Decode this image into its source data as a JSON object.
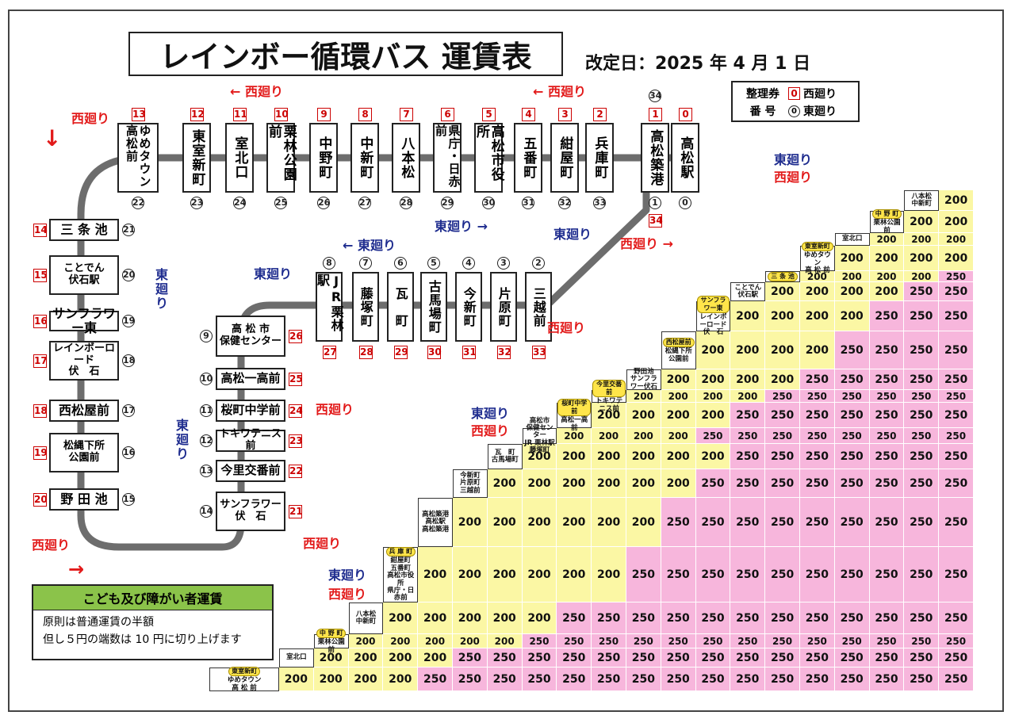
{
  "title": "レインボー循環バス 運賃表",
  "revised": "改定日：2025 年 4 月 1 日",
  "legend": {
    "label_line1": "整理券",
    "label_line2": "番 号",
    "sq_mark": "0",
    "sq_text": "西廻り",
    "ci_mark": "0",
    "ci_text": "東廻り"
  },
  "directions": {
    "west": "西廻り",
    "east": "東廻り",
    "east_v": "東\n廻\nり"
  },
  "top_stops": [
    {
      "name": "ゆめタウン高松前",
      "sq": "13",
      "ci": "22"
    },
    {
      "name": "東室新町",
      "sq": "12",
      "ci": "23"
    },
    {
      "name": "室北口",
      "sq": "11",
      "ci": "24"
    },
    {
      "name": "栗林公園前",
      "sq": "10",
      "ci": "25"
    },
    {
      "name": "中野町",
      "sq": "9",
      "ci": "26"
    },
    {
      "name": "中新町",
      "sq": "8",
      "ci": "27"
    },
    {
      "name": "八本松",
      "sq": "7",
      "ci": "28"
    },
    {
      "name": "県庁・日赤前",
      "sq": "6",
      "ci": "29"
    },
    {
      "name": "高松市役所",
      "sq": "5",
      "ci": "30"
    },
    {
      "name": "五番町",
      "sq": "4",
      "ci": "31"
    },
    {
      "name": "紺屋町",
      "sq": "3",
      "ci": "32"
    },
    {
      "name": "兵庫町",
      "sq": "2",
      "ci": "33"
    },
    {
      "name": "高松築港",
      "sq": "1",
      "ci": "1",
      "ci_top": "34",
      "sq_bottom": "34"
    },
    {
      "name": "高松駅",
      "sq": "0",
      "ci": "0"
    }
  ],
  "mid_stops": [
    {
      "name": "JR栗林駅",
      "ci": "8",
      "sq": "27"
    },
    {
      "name": "藤塚町",
      "ci": "7",
      "sq": "28"
    },
    {
      "name": "瓦　町",
      "ci": "6",
      "sq": "29"
    },
    {
      "name": "古馬場町",
      "ci": "5",
      "sq": "30"
    },
    {
      "name": "今新町",
      "ci": "4",
      "sq": "31"
    },
    {
      "name": "片原町",
      "ci": "3",
      "sq": "32"
    },
    {
      "name": "三越前",
      "ci": "2",
      "sq": "33"
    }
  ],
  "left_stops": [
    {
      "name": "三 条 池",
      "sq": "14",
      "ci": "21"
    },
    {
      "name": "ことでん\n伏石駅",
      "sq": "15",
      "ci": "20"
    },
    {
      "name": "サンフラワー東",
      "sq": "16",
      "ci": "19"
    },
    {
      "name": "レインボーロード\n伏　石",
      "sq": "17",
      "ci": "18"
    },
    {
      "name": "西松屋前",
      "sq": "18",
      "ci": "17"
    },
    {
      "name": "松縄下所\n公園前",
      "sq": "19",
      "ci": "16"
    },
    {
      "name": "野 田 池",
      "sq": "20",
      "ci": "15"
    }
  ],
  "inner_stops": [
    {
      "name": "高 松 市\n保健センター",
      "ci": "9",
      "sq": "26"
    },
    {
      "name": "高松一高前",
      "ci": "10",
      "sq": "25"
    },
    {
      "name": "桜町中学前",
      "ci": "11",
      "sq": "24"
    },
    {
      "name": "トキワテニス前",
      "ci": "12",
      "sq": "23"
    },
    {
      "name": "今里交番前",
      "ci": "13",
      "sq": "22"
    },
    {
      "name": "サンフラワー\n伏　石",
      "ci": "14",
      "sq": "21"
    }
  ],
  "fare_headers": [
    {
      "tag": "東室新町",
      "name": "ゆめタウン\n高 松 前"
    },
    {
      "tag": "",
      "name": "室北口"
    },
    {
      "tag": "中 野 町",
      "name": "栗林公園前"
    },
    {
      "tag": "",
      "name": "八本松\n中新町"
    },
    {
      "tag": "兵 庫 町",
      "name": "紺屋町\n五番町\n高松市役所\n県庁・日赤前"
    },
    {
      "tag": "",
      "name": "高松築港\n高松駅\n高松築港"
    },
    {
      "tag": "",
      "name": "今新町\n片原町\n三越前"
    },
    {
      "tag": "",
      "name": "瓦　町\n古馬場町"
    },
    {
      "tag": "",
      "name": "高松市\n保健センター\nJR 栗林駅\n藤塚町"
    },
    {
      "tag": "桜町中学前",
      "name": "高松一高前"
    },
    {
      "tag": "今里交番前",
      "name": "トキワテニス前"
    },
    {
      "tag": "",
      "name": "野田池\nサンフラワー伏石"
    },
    {
      "tag": "西松屋前",
      "name": "松縄下所公園前"
    },
    {
      "tag": "サンフラワー東",
      "name": "レインボーロード\n伏　石"
    },
    {
      "tag": "",
      "name": "ことでん伏石駅"
    },
    {
      "tag": "三 条 池",
      "name": ""
    },
    {
      "tag": "東室新町",
      "name": "ゆめタウン\n高 松 前"
    },
    {
      "tag": "",
      "name": "室北口"
    },
    {
      "tag": "中 野 町",
      "name": "栗林公園前"
    },
    {
      "tag": "",
      "name": "八本松\n中新町"
    },
    {
      "tag": "兵 庫 町",
      "name": "紺屋町\n五番町\n高松市役所\n県庁・日赤前"
    },
    {
      "tag": "",
      "name": "高松築港\n高松駅\n高松築港"
    },
    {
      "tag": "",
      "name": "今新町\n片原町\n三越前"
    },
    {
      "tag": "",
      "name": "瓦　町\n古馬場町"
    }
  ],
  "fare_200": "200",
  "fare_250": "250",
  "child_fare": {
    "title": "こども及び障がい者運賃",
    "line1": "原則は普通運賃の半額",
    "line2": "但し５円の端数は 10 円に切り上げます"
  }
}
